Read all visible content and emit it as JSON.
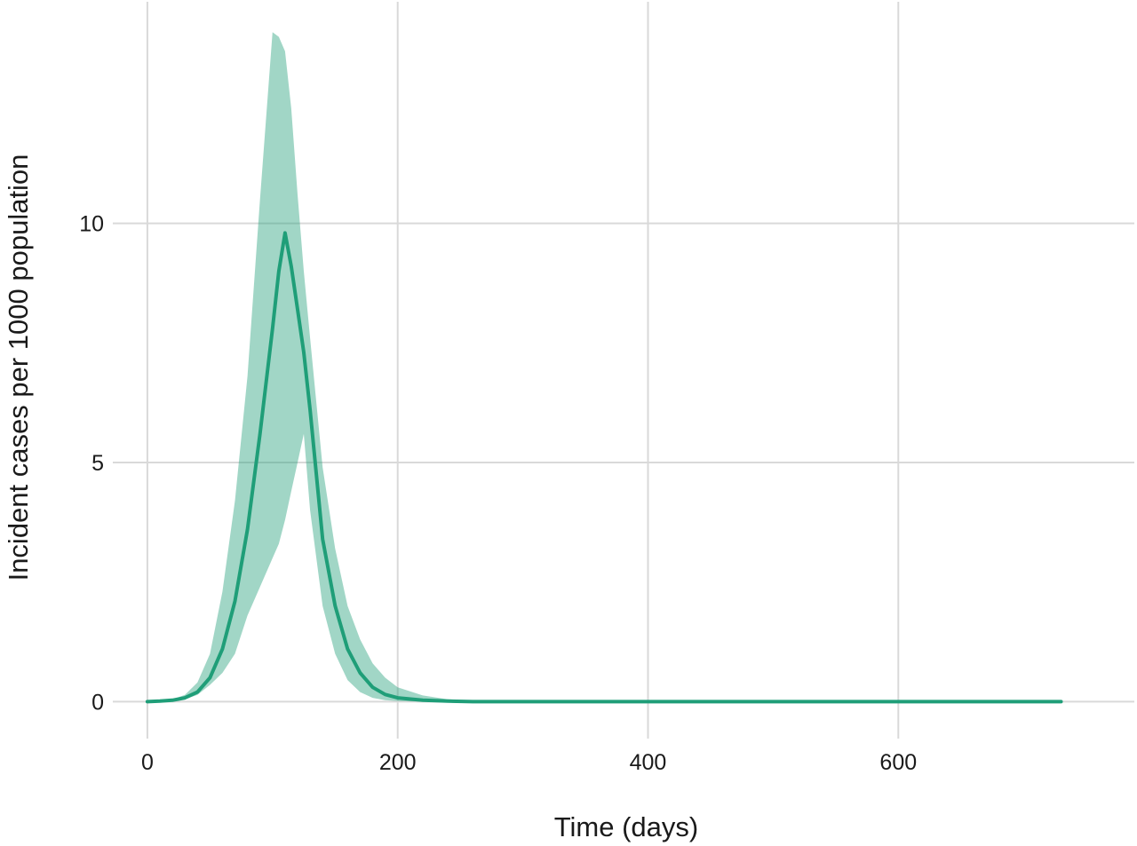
{
  "chart_data": {
    "type": "line",
    "title": "",
    "xlabel": "Time (days)",
    "ylabel": "Incident cases per 1000 population",
    "xlim": [
      -12,
      768
    ],
    "ylim": [
      -0.55,
      14.3
    ],
    "xticks": [
      0,
      200,
      400,
      600
    ],
    "yticks": [
      0,
      5,
      10
    ],
    "xtick_labels": [
      "0",
      "200",
      "400",
      "600"
    ],
    "ytick_labels": [
      "0",
      "5",
      "10"
    ],
    "grid": true,
    "legend": "none",
    "colors": {
      "line": "#1f9e78",
      "band": "#1f9e78",
      "band_opacity": 0.42,
      "grid": "#d9d9d9"
    },
    "series": [
      {
        "x": [
          0,
          10,
          20,
          30,
          40,
          50,
          60,
          70,
          80,
          90,
          100,
          105,
          110,
          115,
          120,
          125,
          130,
          140,
          150,
          160,
          170,
          180,
          190,
          200,
          220,
          240,
          260,
          280,
          300,
          400,
          500,
          600,
          700,
          730
        ],
        "y": [
          0,
          0.01,
          0.03,
          0.08,
          0.2,
          0.5,
          1.1,
          2.1,
          3.6,
          5.6,
          7.8,
          9.0,
          9.8,
          9.1,
          8.2,
          7.3,
          6.1,
          3.4,
          2.0,
          1.1,
          0.6,
          0.3,
          0.15,
          0.08,
          0.03,
          0.01,
          0,
          0,
          0,
          0,
          0,
          0,
          0,
          0
        ],
        "lower": [
          0,
          0.0,
          0.02,
          0.05,
          0.14,
          0.35,
          0.6,
          1.0,
          1.8,
          2.4,
          3.0,
          3.3,
          3.8,
          4.4,
          5.0,
          5.6,
          4.0,
          2.0,
          1.0,
          0.45,
          0.2,
          0.08,
          0.03,
          0.01,
          0,
          0,
          0,
          0,
          0,
          0,
          0,
          0,
          0,
          0
        ],
        "upper": [
          0,
          0.02,
          0.05,
          0.14,
          0.4,
          1.0,
          2.3,
          4.2,
          6.8,
          10.5,
          14.0,
          13.9,
          13.6,
          12.4,
          10.6,
          9.0,
          7.6,
          4.9,
          3.2,
          2.0,
          1.3,
          0.8,
          0.5,
          0.3,
          0.13,
          0.05,
          0.02,
          0.01,
          0,
          0,
          0,
          0,
          0,
          0
        ]
      }
    ]
  }
}
